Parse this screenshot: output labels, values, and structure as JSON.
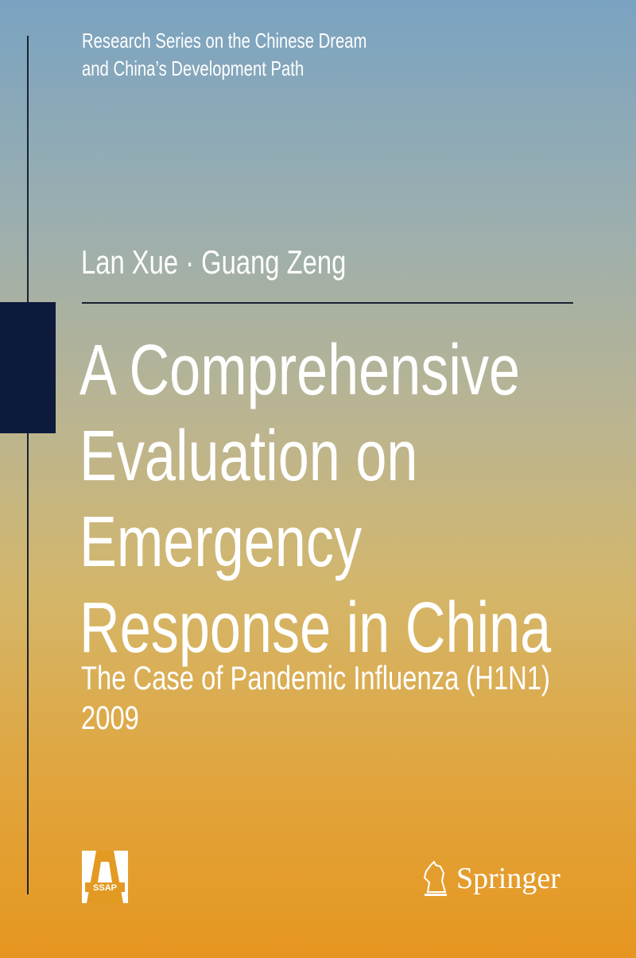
{
  "series": {
    "line1": "Research Series on the Chinese Dream",
    "line2": "and China’s Development Path"
  },
  "authors": "Lan Xue · Guang Zeng",
  "title": [
    "A Comprehensive",
    "Evaluation on",
    "Emergency",
    "Response in China"
  ],
  "subtitle": [
    "The Case of Pandemic Influenza (H1N1)",
    "2009"
  ],
  "publishers": {
    "ssap": "SSAP",
    "springer": "Springer"
  },
  "colors": {
    "top": "#7aa3c1",
    "bottom": "#e6961f",
    "accent_block": "#0e1a3c"
  }
}
